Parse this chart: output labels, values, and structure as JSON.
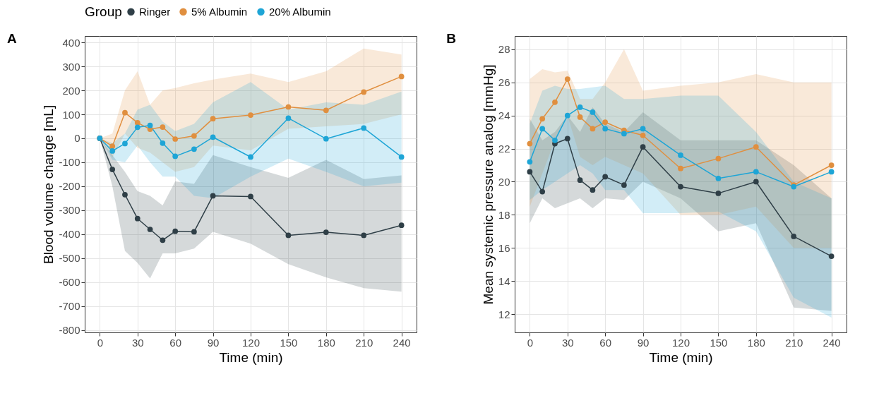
{
  "chart_data": [
    {
      "type": "line",
      "title": "A",
      "xlabel": "Time (min)",
      "ylabel": "Blood volume change [mL]",
      "legend_title": "Group",
      "legend": "top",
      "grid": true,
      "marker": "circle",
      "line_style": "solid",
      "xlim": [
        -12,
        252
      ],
      "xticks": [
        0,
        30,
        60,
        90,
        120,
        150,
        180,
        210,
        240
      ],
      "ylim": [
        -810,
        427
      ],
      "yticks": [
        -800,
        -700,
        -600,
        -500,
        -400,
        -300,
        -200,
        -100,
        0,
        100,
        200,
        300,
        400
      ],
      "x": [
        0,
        10,
        20,
        30,
        40,
        50,
        60,
        75,
        90,
        120,
        150,
        180,
        210,
        240
      ],
      "series": [
        {
          "name": "Ringer",
          "color": "#2f3f47",
          "values": [
            0,
            -130,
            -235,
            -335,
            -380,
            -425,
            -388,
            -390,
            -240,
            -243,
            -405,
            -392,
            -405,
            -363
          ],
          "lower": [
            0,
            -200,
            -470,
            -520,
            -585,
            -480,
            -480,
            -460,
            -390,
            -440,
            -525,
            -580,
            -625,
            -640
          ],
          "upper": [
            0,
            -70,
            -140,
            -220,
            -240,
            -280,
            -180,
            -190,
            -70,
            -120,
            -165,
            -90,
            -170,
            -155
          ]
        },
        {
          "name": "5% Albumin",
          "color": "#e08f3f",
          "values": [
            0,
            -33,
            107,
            65,
            38,
            47,
            -3,
            10,
            82,
            97,
            131,
            117,
            193,
            258
          ],
          "lower": [
            0,
            -80,
            20,
            -40,
            -60,
            -100,
            -140,
            -120,
            -30,
            -50,
            40,
            50,
            60,
            100
          ],
          "upper": [
            0,
            20,
            200,
            280,
            140,
            200,
            210,
            230,
            245,
            270,
            235,
            280,
            375,
            350
          ]
        },
        {
          "name": "20% Albumin",
          "color": "#1ea5d6",
          "values": [
            0,
            -53,
            -22,
            46,
            54,
            -20,
            -75,
            -45,
            5,
            -78,
            84,
            -2,
            43,
            -78
          ],
          "lower": [
            0,
            -90,
            -100,
            -30,
            -100,
            -160,
            -160,
            -240,
            -250,
            -160,
            -85,
            -140,
            -200,
            -185
          ],
          "upper": [
            0,
            -20,
            20,
            120,
            140,
            70,
            30,
            60,
            150,
            235,
            120,
            150,
            140,
            195
          ]
        }
      ]
    },
    {
      "type": "line",
      "title": "B",
      "xlabel": "Time (min)",
      "ylabel": "Mean systemic pressure analog [mmHg]",
      "grid": true,
      "marker": "circle",
      "line_style": "solid",
      "xlim": [
        -12,
        252
      ],
      "xticks": [
        0,
        30,
        60,
        90,
        120,
        150,
        180,
        210,
        240
      ],
      "ylim": [
        10.9,
        28.8
      ],
      "yticks": [
        12,
        14,
        16,
        18,
        20,
        22,
        24,
        26,
        28
      ],
      "x": [
        0,
        10,
        20,
        30,
        40,
        50,
        60,
        75,
        90,
        120,
        150,
        180,
        210,
        240
      ],
      "series": [
        {
          "name": "Ringer",
          "color": "#2f3f47",
          "values": [
            20.6,
            19.4,
            22.3,
            22.6,
            20.1,
            19.5,
            20.3,
            19.8,
            22.1,
            19.7,
            19.3,
            20.0,
            16.7,
            15.5
          ],
          "lower": [
            17.5,
            19.0,
            18.4,
            18.7,
            19.0,
            18.4,
            19.0,
            18.9,
            20.0,
            19.0,
            17.0,
            17.5,
            12.4,
            12.2
          ],
          "upper": [
            23.8,
            22.5,
            23.0,
            24.0,
            23.0,
            24.5,
            23.5,
            23.0,
            24.2,
            22.5,
            22.5,
            22.5,
            21.0,
            19.0
          ]
        },
        {
          "name": "5% Albumin",
          "color": "#e08f3f",
          "values": [
            22.3,
            23.8,
            24.8,
            26.2,
            23.9,
            23.2,
            23.6,
            23.1,
            22.8,
            20.8,
            21.4,
            22.1,
            19.8,
            21.0
          ],
          "lower": [
            18.5,
            20.5,
            22.5,
            24.0,
            21.5,
            21.0,
            21.5,
            21.0,
            20.5,
            18.0,
            18.0,
            18.5,
            16.0,
            16.0
          ],
          "upper": [
            26.2,
            26.8,
            26.6,
            26.7,
            25.0,
            25.0,
            26.0,
            28.0,
            25.5,
            25.8,
            26.0,
            26.5,
            26.0,
            26.0
          ]
        },
        {
          "name": "20% Albumin",
          "color": "#1ea5d6",
          "values": [
            21.2,
            23.2,
            22.5,
            24.0,
            24.5,
            24.2,
            23.2,
            22.9,
            23.2,
            21.6,
            20.2,
            20.6,
            19.7,
            20.6
          ],
          "lower": [
            18.9,
            19.5,
            20.0,
            20.5,
            21.0,
            20.5,
            19.5,
            19.5,
            18.1,
            18.1,
            18.2,
            17.0,
            13.0,
            11.8
          ],
          "upper": [
            23.5,
            25.5,
            25.8,
            25.6,
            25.6,
            25.7,
            25.8,
            25.0,
            25.0,
            25.2,
            25.2,
            23.0,
            20.0,
            19.0
          ]
        }
      ]
    }
  ]
}
